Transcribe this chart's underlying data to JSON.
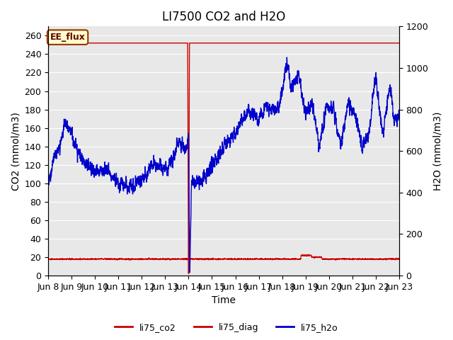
{
  "title": "LI7500 CO2 and H2O",
  "ylabel_left": "CO2 (mmol/m3)",
  "ylabel_right": "H2O (mmol/m3)",
  "xlabel": "Time",
  "ylim_left": [
    0,
    270
  ],
  "ylim_right": [
    0,
    1200
  ],
  "bg_color": "#e8e8e8",
  "grid_color": "white",
  "annotation_label": "EE_flux",
  "annotation_bg": "#ffffcc",
  "annotation_border": "#993300",
  "legend_entries": [
    "li75_co2",
    "li75_diag",
    "li75_h2o"
  ],
  "legend_colors": [
    "#cc0000",
    "#cc0000",
    "#0000cc"
  ],
  "line_co2_color": "#cc0000",
  "line_diag_color": "#cc0000",
  "line_h2o_color": "#0000cc",
  "title_fontsize": 12,
  "axis_fontsize": 10,
  "tick_fontsize": 9,
  "xtick_labels": [
    "Jun 8",
    "Jun 9",
    "Jun 10",
    "Jun 11",
    "Jun 12",
    "Jun 13",
    "Jun 14",
    "Jun 15",
    "Jun 16",
    "Jun 17",
    "Jun 18",
    "Jun 19",
    "Jun 20",
    "Jun 21",
    "Jun 22",
    "Jun 23"
  ],
  "yticks_left": [
    0,
    20,
    40,
    60,
    80,
    100,
    120,
    140,
    160,
    180,
    200,
    220,
    240,
    260
  ],
  "yticks_right": [
    0,
    200,
    400,
    600,
    800,
    1000,
    1200
  ]
}
